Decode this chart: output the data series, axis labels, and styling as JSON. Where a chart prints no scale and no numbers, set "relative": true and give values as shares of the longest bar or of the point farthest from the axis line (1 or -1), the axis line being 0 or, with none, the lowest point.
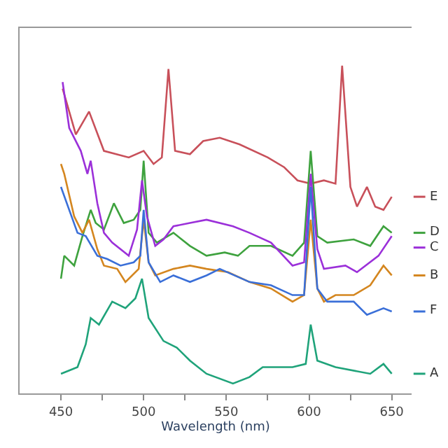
{
  "chart_data": {
    "type": "line",
    "relative": true,
    "xlabel": "Wavelength (nm)",
    "xlim": [
      425,
      662
    ],
    "xticks": [
      450,
      {
        "value": 475,
        "label": null
      },
      500,
      {
        "value": 525,
        "label": null
      },
      550,
      {
        "value": 575,
        "label": null
      },
      600,
      {
        "value": 625,
        "label": null
      },
      650
    ],
    "tick_labels": "x",
    "legend": "right",
    "marker": "none",
    "line_style": "solid",
    "series": [
      {
        "name": "E",
        "color": "#c8505a",
        "x": [
          451,
          459,
          467,
          476,
          491,
          500,
          506,
          511,
          515,
          519,
          528,
          536,
          546,
          558,
          575,
          585,
          593,
          601,
          609,
          616,
          620,
          625,
          629,
          635,
          640,
          645,
          650
        ],
        "values": [
          0.93,
          0.79,
          0.86,
          0.74,
          0.72,
          0.74,
          0.7,
          0.72,
          0.99,
          0.74,
          0.73,
          0.77,
          0.78,
          0.76,
          0.72,
          0.69,
          0.65,
          0.64,
          0.65,
          0.64,
          1,
          0.63,
          0.57,
          0.63,
          0.57,
          0.56,
          0.6
        ]
      },
      {
        "name": "D",
        "color": "#3ea23e",
        "x": [
          450,
          452,
          458,
          463,
          468,
          471,
          476,
          482,
          488,
          494,
          498,
          500,
          503,
          508,
          518,
          528,
          538,
          549,
          557,
          564,
          577,
          590,
          597,
          601,
          605,
          611,
          627,
          637,
          645,
          650
        ],
        "values": [
          0.35,
          0.42,
          0.39,
          0.48,
          0.56,
          0.52,
          0.5,
          0.58,
          0.52,
          0.53,
          0.56,
          0.71,
          0.49,
          0.46,
          0.49,
          0.45,
          0.42,
          0.43,
          0.42,
          0.45,
          0.45,
          0.42,
          0.46,
          0.74,
          0.48,
          0.46,
          0.47,
          0.45,
          0.51,
          0.49
        ]
      },
      {
        "name": "C",
        "color": "#9b30d9",
        "x": [
          451,
          455,
          462,
          466,
          468,
          472,
          476,
          481,
          491,
          496,
          499,
          502,
          507,
          512,
          518,
          528,
          538,
          554,
          564,
          577,
          590,
          597,
          601,
          605,
          609,
          622,
          629,
          642,
          650
        ],
        "values": [
          0.95,
          0.81,
          0.74,
          0.67,
          0.71,
          0.58,
          0.49,
          0.46,
          0.42,
          0.5,
          0.65,
          0.54,
          0.45,
          0.47,
          0.51,
          0.52,
          0.53,
          0.51,
          0.49,
          0.46,
          0.39,
          0.4,
          0.67,
          0.44,
          0.38,
          0.39,
          0.37,
          0.42,
          0.48
        ]
      },
      {
        "name": "B",
        "color": "#d4861f",
        "x": [
          450,
          452,
          458,
          463,
          467,
          472,
          476,
          484,
          489,
          497,
          500,
          503,
          507,
          518,
          528,
          538,
          551,
          564,
          577,
          590,
          597,
          601,
          605,
          609,
          616,
          627,
          637,
          645,
          650
        ],
        "values": [
          0.7,
          0.67,
          0.54,
          0.49,
          0.53,
          0.44,
          0.39,
          0.38,
          0.34,
          0.38,
          0.53,
          0.4,
          0.36,
          0.38,
          0.39,
          0.38,
          0.37,
          0.34,
          0.32,
          0.28,
          0.3,
          0.53,
          0.32,
          0.28,
          0.3,
          0.3,
          0.33,
          0.39,
          0.36
        ]
      },
      {
        "name": "F",
        "color": "#3a6fd8",
        "x": [
          450,
          455,
          460,
          465,
          472,
          478,
          486,
          494,
          498,
          500,
          503,
          510,
          518,
          528,
          538,
          546,
          564,
          577,
          590,
          597,
          601,
          605,
          611,
          627,
          635,
          645,
          650
        ],
        "values": [
          0.63,
          0.56,
          0.49,
          0.48,
          0.42,
          0.41,
          0.39,
          0.4,
          0.42,
          0.56,
          0.4,
          0.34,
          0.36,
          0.34,
          0.36,
          0.38,
          0.34,
          0.33,
          0.3,
          0.3,
          0.63,
          0.32,
          0.28,
          0.28,
          0.24,
          0.26,
          0.25
        ]
      },
      {
        "name": "A",
        "color": "#1fa37a",
        "x": [
          450,
          455,
          460,
          465,
          468,
          473,
          481,
          489,
          495,
          499,
          503,
          512,
          520,
          528,
          538,
          554,
          564,
          572,
          590,
          598,
          601,
          605,
          616,
          637,
          645,
          650
        ],
        "values": [
          0.06,
          0.07,
          0.08,
          0.15,
          0.23,
          0.21,
          0.28,
          0.26,
          0.29,
          0.35,
          0.23,
          0.16,
          0.14,
          0.1,
          0.06,
          0.03,
          0.05,
          0.08,
          0.08,
          0.09,
          0.21,
          0.1,
          0.08,
          0.06,
          0.09,
          0.06
        ]
      }
    ]
  }
}
